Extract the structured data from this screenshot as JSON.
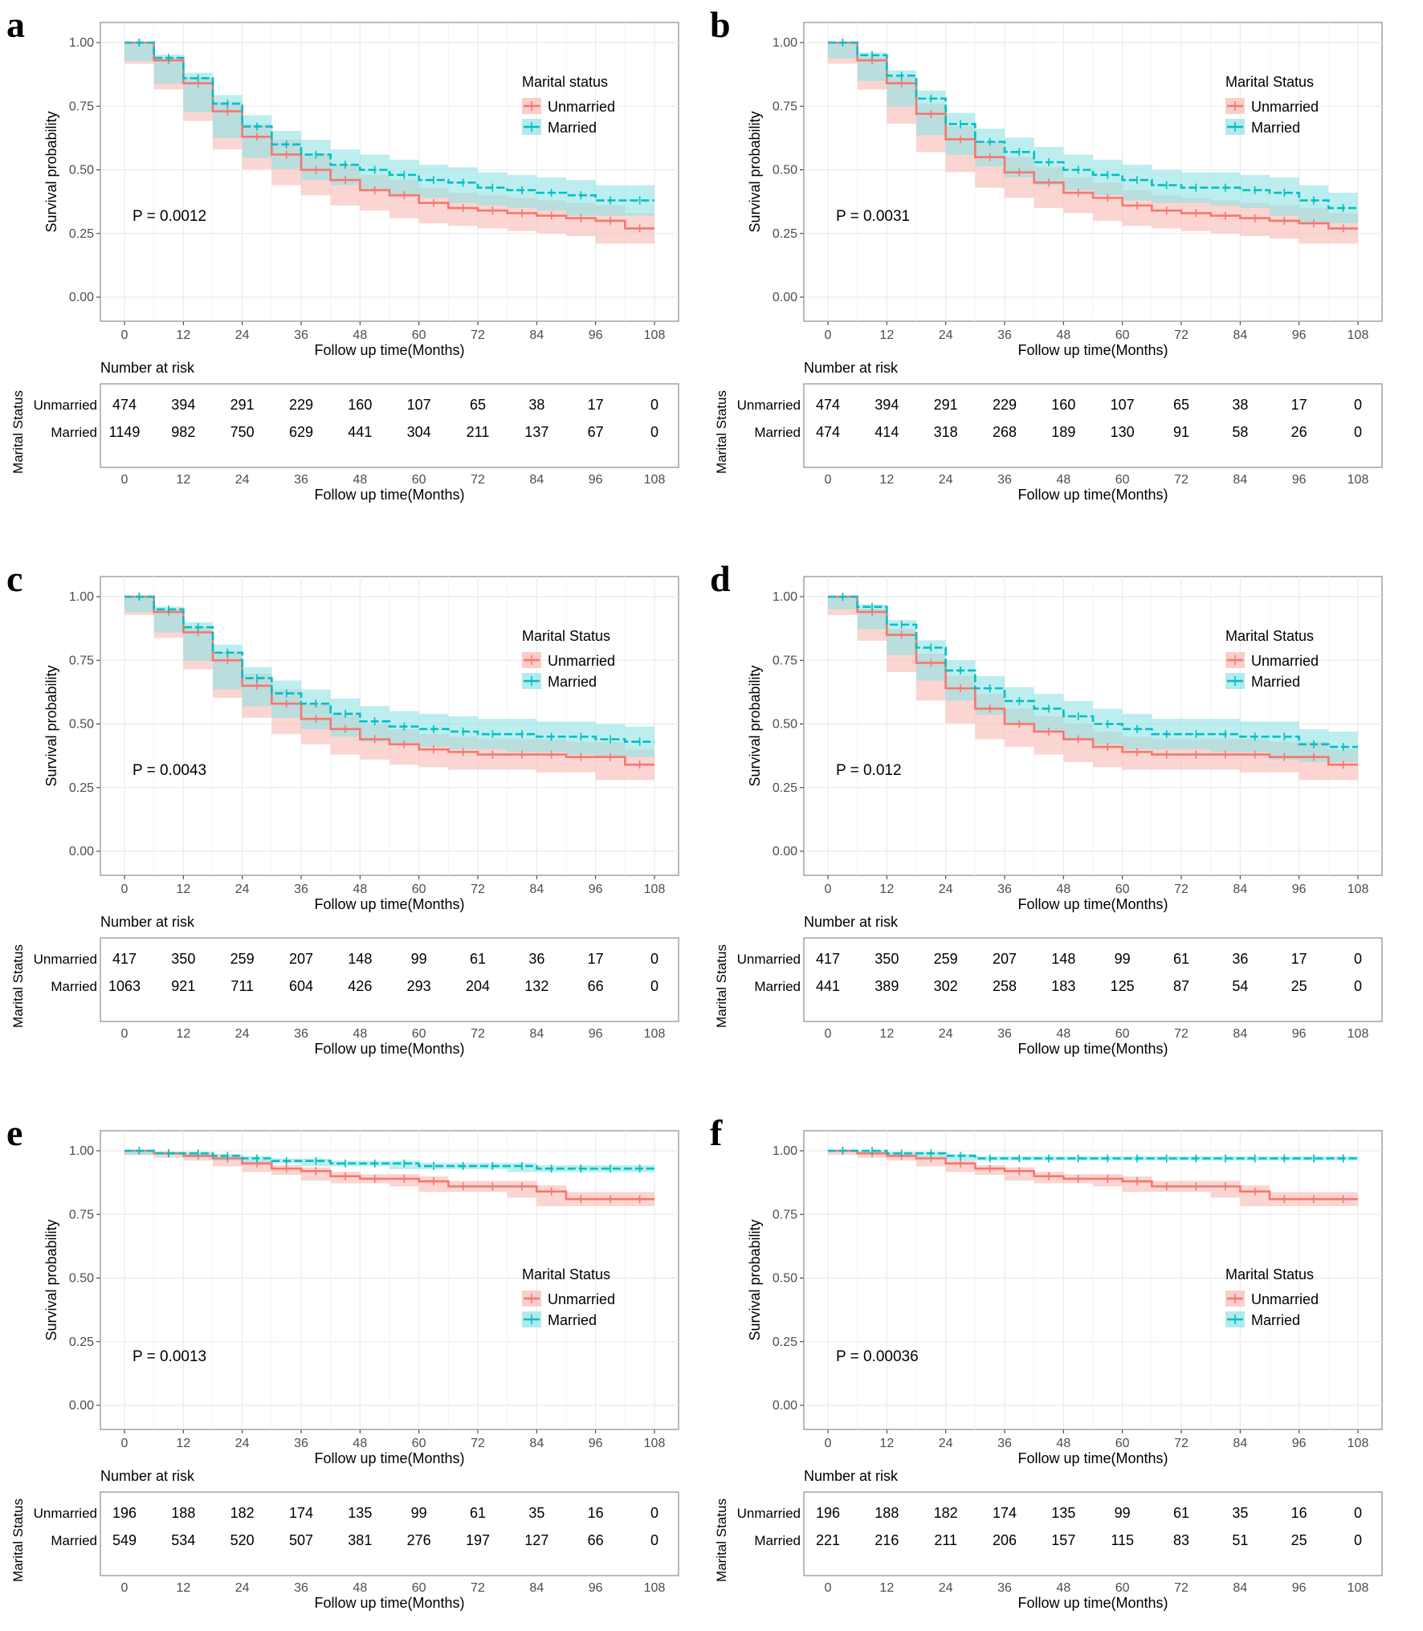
{
  "strata_title": "Marital Status",
  "colors": {
    "unmarried": "#F8766D",
    "married": "#00BFC4",
    "unmarried_band": "#F8B9B4",
    "married_band": "#8FE3E5"
  },
  "chart_data": [
    {
      "type": "line",
      "letter": "a",
      "legend_title": "Marital status",
      "legend_position": "top-right",
      "xlabel": "Follow up time(Months)",
      "ylabel": "Survival probability",
      "xlim": [
        0,
        108
      ],
      "ylim": [
        0,
        1
      ],
      "x_ticks": [
        "0",
        "12",
        "24",
        "36",
        "48",
        "60",
        "72",
        "84",
        "96",
        "108"
      ],
      "y_ticks": [
        "0.00",
        "0.25",
        "0.50",
        "0.75",
        "1.00"
      ],
      "grid": true,
      "p_value": "P = 0.0012",
      "series": [
        {
          "name": "Unmarried",
          "x": [
            0,
            6,
            12,
            18,
            24,
            30,
            36,
            42,
            48,
            54,
            60,
            66,
            72,
            78,
            84,
            90,
            96,
            102,
            108
          ],
          "y": [
            1.0,
            0.93,
            0.84,
            0.73,
            0.63,
            0.56,
            0.5,
            0.46,
            0.42,
            0.4,
            0.37,
            0.35,
            0.34,
            0.33,
            0.32,
            0.31,
            0.3,
            0.27,
            0.27
          ]
        },
        {
          "name": "Married",
          "x": [
            0,
            6,
            12,
            18,
            24,
            30,
            36,
            42,
            48,
            54,
            60,
            66,
            72,
            78,
            84,
            90,
            96,
            102,
            108
          ],
          "y": [
            1.0,
            0.94,
            0.86,
            0.76,
            0.67,
            0.6,
            0.56,
            0.52,
            0.5,
            0.48,
            0.46,
            0.45,
            0.43,
            0.42,
            0.41,
            0.4,
            0.38,
            0.38,
            0.38
          ]
        }
      ],
      "risk_table": {
        "title": "Number at risk",
        "rows": [
          {
            "label": "Unmarried",
            "values": [
              "474",
              "394",
              "291",
              "229",
              "160",
              "107",
              "65",
              "38",
              "17",
              "0"
            ]
          },
          {
            "label": "Married",
            "values": [
              "1149",
              "982",
              "750",
              "629",
              "441",
              "304",
              "211",
              "137",
              "67",
              "0"
            ]
          }
        ]
      }
    },
    {
      "type": "line",
      "letter": "b",
      "legend_title": "Marital Status",
      "legend_position": "top-right",
      "xlabel": "Follow up time(Months)",
      "ylabel": "Survival probability",
      "xlim": [
        0,
        108
      ],
      "ylim": [
        0,
        1
      ],
      "x_ticks": [
        "0",
        "12",
        "24",
        "36",
        "48",
        "60",
        "72",
        "84",
        "96",
        "108"
      ],
      "y_ticks": [
        "0.00",
        "0.25",
        "0.50",
        "0.75",
        "1.00"
      ],
      "grid": true,
      "p_value": "P = 0.0031",
      "series": [
        {
          "name": "Unmarried",
          "x": [
            0,
            6,
            12,
            18,
            24,
            30,
            36,
            42,
            48,
            54,
            60,
            66,
            72,
            78,
            84,
            90,
            96,
            102,
            108
          ],
          "y": [
            1.0,
            0.93,
            0.84,
            0.72,
            0.62,
            0.55,
            0.49,
            0.45,
            0.41,
            0.39,
            0.36,
            0.34,
            0.33,
            0.32,
            0.31,
            0.3,
            0.29,
            0.27,
            0.27
          ]
        },
        {
          "name": "Married",
          "x": [
            0,
            6,
            12,
            18,
            24,
            30,
            36,
            42,
            48,
            54,
            60,
            66,
            72,
            78,
            84,
            90,
            96,
            102,
            108
          ],
          "y": [
            1.0,
            0.95,
            0.87,
            0.78,
            0.68,
            0.61,
            0.57,
            0.53,
            0.5,
            0.48,
            0.46,
            0.44,
            0.43,
            0.43,
            0.42,
            0.41,
            0.38,
            0.35,
            0.35
          ]
        }
      ],
      "risk_table": {
        "title": "Number at risk",
        "rows": [
          {
            "label": "Unmarried",
            "values": [
              "474",
              "394",
              "291",
              "229",
              "160",
              "107",
              "65",
              "38",
              "17",
              "0"
            ]
          },
          {
            "label": "Married",
            "values": [
              "474",
              "414",
              "318",
              "268",
              "189",
              "130",
              "91",
              "58",
              "26",
              "0"
            ]
          }
        ]
      }
    },
    {
      "type": "line",
      "letter": "c",
      "legend_title": "Marital Status",
      "legend_position": "top-right",
      "xlabel": "Follow up time(Months)",
      "ylabel": "Survival probability",
      "xlim": [
        0,
        108
      ],
      "ylim": [
        0,
        1
      ],
      "x_ticks": [
        "0",
        "12",
        "24",
        "36",
        "48",
        "60",
        "72",
        "84",
        "96",
        "108"
      ],
      "y_ticks": [
        "0.00",
        "0.25",
        "0.50",
        "0.75",
        "1.00"
      ],
      "grid": true,
      "p_value": "P = 0.0043",
      "series": [
        {
          "name": "Unmarried",
          "x": [
            0,
            6,
            12,
            18,
            24,
            30,
            36,
            42,
            48,
            54,
            60,
            66,
            72,
            78,
            84,
            90,
            96,
            102,
            108
          ],
          "y": [
            1.0,
            0.94,
            0.86,
            0.75,
            0.65,
            0.58,
            0.52,
            0.48,
            0.44,
            0.42,
            0.4,
            0.39,
            0.38,
            0.38,
            0.38,
            0.37,
            0.37,
            0.34,
            0.34
          ]
        },
        {
          "name": "Married",
          "x": [
            0,
            6,
            12,
            18,
            24,
            30,
            36,
            42,
            48,
            54,
            60,
            66,
            72,
            78,
            84,
            90,
            96,
            102,
            108
          ],
          "y": [
            1.0,
            0.95,
            0.88,
            0.78,
            0.68,
            0.62,
            0.58,
            0.54,
            0.51,
            0.49,
            0.48,
            0.47,
            0.46,
            0.46,
            0.45,
            0.45,
            0.44,
            0.43,
            0.43
          ]
        }
      ],
      "risk_table": {
        "title": "Number at risk",
        "rows": [
          {
            "label": "Unmarried",
            "values": [
              "417",
              "350",
              "259",
              "207",
              "148",
              "99",
              "61",
              "36",
              "17",
              "0"
            ]
          },
          {
            "label": "Married",
            "values": [
              "1063",
              "921",
              "711",
              "604",
              "426",
              "293",
              "204",
              "132",
              "66",
              "0"
            ]
          }
        ]
      }
    },
    {
      "type": "line",
      "letter": "d",
      "legend_title": "Marital Status",
      "legend_position": "top-right",
      "xlabel": "Follow up time(Months)",
      "ylabel": "Survival probability",
      "xlim": [
        0,
        108
      ],
      "ylim": [
        0,
        1
      ],
      "x_ticks": [
        "0",
        "12",
        "24",
        "36",
        "48",
        "60",
        "72",
        "84",
        "96",
        "108"
      ],
      "y_ticks": [
        "0.00",
        "0.25",
        "0.50",
        "0.75",
        "1.00"
      ],
      "grid": true,
      "p_value": "P = 0.012",
      "series": [
        {
          "name": "Unmarried",
          "x": [
            0,
            6,
            12,
            18,
            24,
            30,
            36,
            42,
            48,
            54,
            60,
            66,
            72,
            78,
            84,
            90,
            96,
            102,
            108
          ],
          "y": [
            1.0,
            0.94,
            0.85,
            0.74,
            0.64,
            0.56,
            0.5,
            0.47,
            0.44,
            0.41,
            0.39,
            0.38,
            0.38,
            0.38,
            0.38,
            0.37,
            0.37,
            0.34,
            0.34
          ]
        },
        {
          "name": "Married",
          "x": [
            0,
            6,
            12,
            18,
            24,
            30,
            36,
            42,
            48,
            54,
            60,
            66,
            72,
            78,
            84,
            90,
            96,
            102,
            108
          ],
          "y": [
            1.0,
            0.96,
            0.89,
            0.8,
            0.71,
            0.64,
            0.59,
            0.56,
            0.53,
            0.5,
            0.48,
            0.46,
            0.46,
            0.46,
            0.45,
            0.45,
            0.42,
            0.41,
            0.41
          ]
        }
      ],
      "risk_table": {
        "title": "Number at risk",
        "rows": [
          {
            "label": "Unmarried",
            "values": [
              "417",
              "350",
              "259",
              "207",
              "148",
              "99",
              "61",
              "36",
              "17",
              "0"
            ]
          },
          {
            "label": "Married",
            "values": [
              "441",
              "389",
              "302",
              "258",
              "183",
              "125",
              "87",
              "54",
              "25",
              "0"
            ]
          }
        ]
      }
    },
    {
      "type": "line",
      "letter": "e",
      "legend_title": "Marital Status",
      "legend_position": "center-right",
      "xlabel": "Follow up time(Months)",
      "ylabel": "Survival probability",
      "xlim": [
        0,
        108
      ],
      "ylim": [
        0,
        1
      ],
      "x_ticks": [
        "0",
        "12",
        "24",
        "36",
        "48",
        "60",
        "72",
        "84",
        "96",
        "108"
      ],
      "y_ticks": [
        "0.00",
        "0.25",
        "0.50",
        "0.75",
        "1.00"
      ],
      "grid": true,
      "p_value": "P = 0.0013",
      "series": [
        {
          "name": "Unmarried",
          "x": [
            0,
            6,
            12,
            18,
            24,
            30,
            36,
            42,
            48,
            54,
            60,
            66,
            72,
            78,
            84,
            90,
            96,
            102,
            108
          ],
          "y": [
            1.0,
            0.99,
            0.98,
            0.97,
            0.95,
            0.93,
            0.92,
            0.9,
            0.89,
            0.89,
            0.88,
            0.86,
            0.86,
            0.86,
            0.84,
            0.81,
            0.81,
            0.81,
            0.81
          ]
        },
        {
          "name": "Married",
          "x": [
            0,
            6,
            12,
            18,
            24,
            30,
            36,
            42,
            48,
            54,
            60,
            66,
            72,
            78,
            84,
            90,
            96,
            102,
            108
          ],
          "y": [
            1.0,
            0.99,
            0.99,
            0.98,
            0.97,
            0.96,
            0.96,
            0.95,
            0.95,
            0.95,
            0.94,
            0.94,
            0.94,
            0.94,
            0.93,
            0.93,
            0.93,
            0.93,
            0.93
          ]
        }
      ],
      "risk_table": {
        "title": "Number at risk",
        "rows": [
          {
            "label": "Unmarried",
            "values": [
              "196",
              "188",
              "182",
              "174",
              "135",
              "99",
              "61",
              "35",
              "16",
              "0"
            ]
          },
          {
            "label": "Married",
            "values": [
              "549",
              "534",
              "520",
              "507",
              "381",
              "276",
              "197",
              "127",
              "66",
              "0"
            ]
          }
        ]
      }
    },
    {
      "type": "line",
      "letter": "f",
      "legend_title": "Marital Status",
      "legend_position": "center-right",
      "xlabel": "Follow up time(Months)",
      "ylabel": "Survival probability",
      "xlim": [
        0,
        108
      ],
      "ylim": [
        0,
        1
      ],
      "x_ticks": [
        "0",
        "12",
        "24",
        "36",
        "48",
        "60",
        "72",
        "84",
        "96",
        "108"
      ],
      "y_ticks": [
        "0.00",
        "0.25",
        "0.50",
        "0.75",
        "1.00"
      ],
      "grid": true,
      "p_value": "P = 0.00036",
      "series": [
        {
          "name": "Unmarried",
          "x": [
            0,
            6,
            12,
            18,
            24,
            30,
            36,
            42,
            48,
            54,
            60,
            66,
            72,
            78,
            84,
            90,
            96,
            102,
            108
          ],
          "y": [
            1.0,
            0.99,
            0.98,
            0.97,
            0.95,
            0.93,
            0.92,
            0.9,
            0.89,
            0.89,
            0.88,
            0.86,
            0.86,
            0.86,
            0.84,
            0.81,
            0.81,
            0.81,
            0.81
          ]
        },
        {
          "name": "Married",
          "x": [
            0,
            6,
            12,
            18,
            24,
            30,
            36,
            42,
            48,
            54,
            60,
            66,
            72,
            78,
            84,
            90,
            96,
            102,
            108
          ],
          "y": [
            1.0,
            1.0,
            0.99,
            0.99,
            0.98,
            0.97,
            0.97,
            0.97,
            0.97,
            0.97,
            0.97,
            0.97,
            0.97,
            0.97,
            0.97,
            0.97,
            0.97,
            0.97,
            0.97
          ]
        }
      ],
      "risk_table": {
        "title": "Number at risk",
        "rows": [
          {
            "label": "Unmarried",
            "values": [
              "196",
              "188",
              "182",
              "174",
              "135",
              "99",
              "61",
              "35",
              "16",
              "0"
            ]
          },
          {
            "label": "Married",
            "values": [
              "221",
              "216",
              "211",
              "206",
              "157",
              "115",
              "83",
              "51",
              "25",
              "0"
            ]
          }
        ]
      }
    }
  ]
}
